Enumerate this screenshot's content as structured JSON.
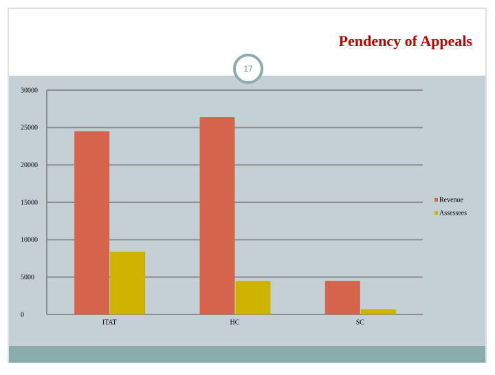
{
  "slide_number": "17",
  "chart_data": {
    "type": "bar",
    "title": "Pendency of Appeals",
    "categories": [
      "ITAT",
      "HC",
      "SC"
    ],
    "series": [
      {
        "name": "Revenue",
        "color": "#d4644a",
        "values": [
          24500,
          26400,
          4500
        ]
      },
      {
        "name": "Assessees",
        "color": "#ccb400",
        "values": [
          8400,
          4500,
          700
        ]
      }
    ],
    "ylim": [
      0,
      30000
    ],
    "yticks": [
      0,
      5000,
      10000,
      15000,
      20000,
      25000,
      30000
    ],
    "grid": true,
    "legend": "right"
  }
}
